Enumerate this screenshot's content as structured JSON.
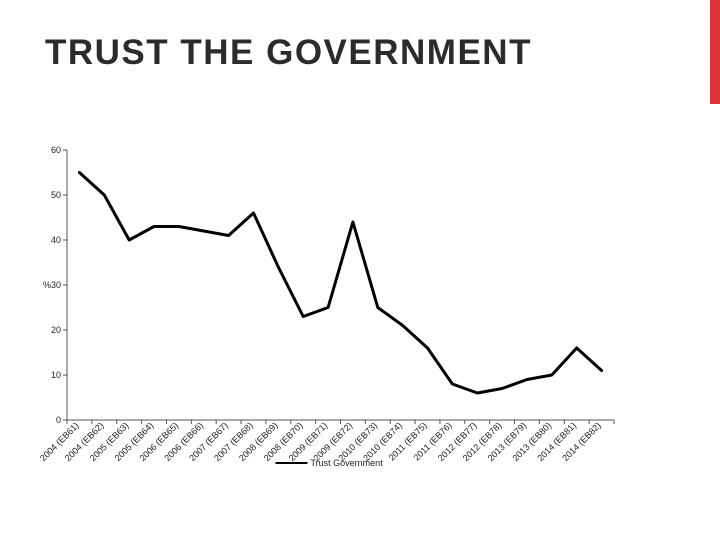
{
  "slide": {
    "title": "TRUST THE GOVERNMENT",
    "accent_color": "#e0323a"
  },
  "chart_data": {
    "type": "line",
    "title": "",
    "xlabel": "",
    "ylabel": "",
    "categories": [
      "2004 (EB61)",
      "2004 (EB62)",
      "2005 (EB63)",
      "2005 (EB64)",
      "2006 (EB65)",
      "2006 (EB66)",
      "2007 (EB67)",
      "2007 (EB68)",
      "2008 (EB69)",
      "2008 (EB70)",
      "2009 (EB71)",
      "2009 (EB72)",
      "2010 (EB73)",
      "2010 (EB74)",
      "2011 (EB75)",
      "2011 (EB76)",
      "2012 (EB77)",
      "2012 (EB78)",
      "2013 (EB79)",
      "2013 (EB80)",
      "2014 (EB81)",
      "2014 (EB82)"
    ],
    "series": [
      {
        "name": "Trust Government",
        "color": "#000000",
        "values": [
          55,
          50,
          40,
          43,
          43,
          42,
          41,
          46,
          34,
          23,
          25,
          44,
          25,
          21,
          16,
          8,
          6,
          7,
          9,
          10,
          16,
          11
        ]
      }
    ],
    "ylim": [
      0,
      60
    ],
    "yticks": [
      "0",
      "10",
      "20",
      "%30",
      "40",
      "50",
      "60"
    ],
    "ytick_values": [
      0,
      10,
      20,
      30,
      40,
      50,
      60
    ],
    "grid": false,
    "legend": "bottom-center"
  }
}
